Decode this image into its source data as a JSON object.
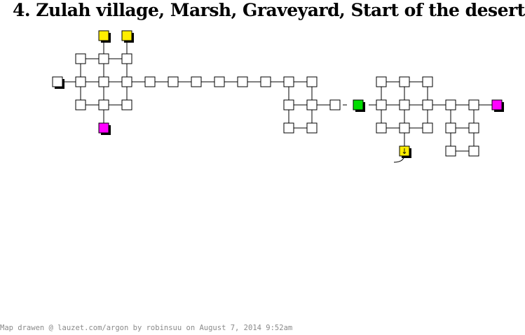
{
  "title": "4. Zulah village, Marsh, Graveyard, Start of the desert",
  "footer": "Map drawen @ lauzet.com/argon by robinsuu on August 7, 2014 9:52am",
  "colors": {
    "room_fill": "#ffffff",
    "room_stroke": "#000000",
    "shadow": "#000000",
    "yellow": "#ffee00",
    "magenta": "#ff00ff",
    "green": "#00dd00"
  },
  "map": {
    "rooms": [
      {
        "id": "r1",
        "type": "special",
        "color": "yellow"
      },
      {
        "id": "r2",
        "type": "special",
        "color": "yellow"
      },
      {
        "id": "r3",
        "type": "plain"
      },
      {
        "id": "r4",
        "type": "plain"
      },
      {
        "id": "r5",
        "type": "plain"
      },
      {
        "id": "r6",
        "type": "entrance"
      },
      {
        "id": "r7",
        "type": "plain"
      },
      {
        "id": "r8",
        "type": "plain"
      },
      {
        "id": "r9",
        "type": "plain"
      },
      {
        "id": "r10",
        "type": "plain"
      },
      {
        "id": "r11",
        "type": "plain"
      },
      {
        "id": "r12",
        "type": "plain"
      },
      {
        "id": "r13",
        "type": "special",
        "color": "magenta"
      },
      {
        "id": "r14",
        "type": "plain"
      },
      {
        "id": "r15",
        "type": "plain"
      },
      {
        "id": "r16",
        "type": "plain"
      },
      {
        "id": "r17",
        "type": "plain"
      },
      {
        "id": "r18",
        "type": "plain"
      },
      {
        "id": "r19",
        "type": "plain"
      },
      {
        "id": "r20",
        "type": "plain"
      },
      {
        "id": "r21",
        "type": "plain"
      },
      {
        "id": "r22",
        "type": "plain"
      },
      {
        "id": "r23",
        "type": "plain"
      },
      {
        "id": "r24",
        "type": "plain"
      },
      {
        "id": "r25",
        "type": "plain"
      },
      {
        "id": "r26",
        "type": "plain"
      },
      {
        "id": "r27",
        "type": "special",
        "color": "green"
      },
      {
        "id": "r28",
        "type": "plain"
      },
      {
        "id": "r29",
        "type": "plain"
      },
      {
        "id": "r30",
        "type": "plain"
      },
      {
        "id": "r31",
        "type": "plain"
      },
      {
        "id": "r32",
        "type": "plain"
      },
      {
        "id": "r33",
        "type": "plain"
      },
      {
        "id": "r34",
        "type": "plain"
      },
      {
        "id": "r35",
        "type": "plain"
      },
      {
        "id": "r36",
        "type": "special",
        "color": "magenta"
      },
      {
        "id": "r37",
        "type": "plain"
      },
      {
        "id": "r38",
        "type": "plain"
      },
      {
        "id": "r39",
        "type": "plain"
      },
      {
        "id": "r40",
        "type": "plain"
      },
      {
        "id": "r41",
        "type": "special",
        "color": "yellow",
        "icon": "down-arrow-icon",
        "glyph": "↓"
      },
      {
        "id": "r42",
        "type": "plain"
      },
      {
        "id": "r43",
        "type": "plain"
      }
    ]
  }
}
